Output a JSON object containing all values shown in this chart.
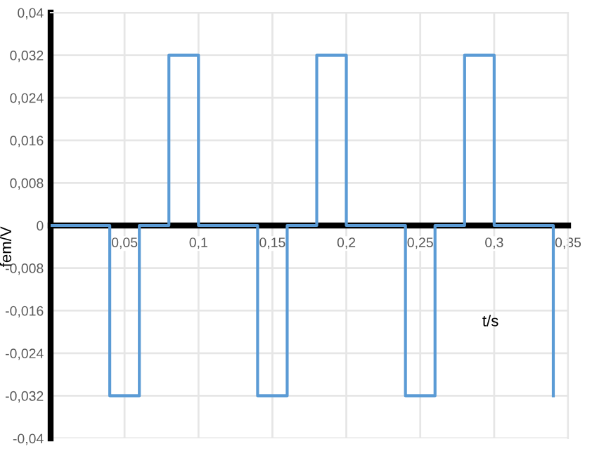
{
  "chart_data": {
    "type": "step",
    "xlabel": "t/s",
    "ylabel": "fem/V",
    "x": [
      0,
      0.04,
      0.06,
      0.08,
      0.1,
      0.14,
      0.16,
      0.18,
      0.2,
      0.24,
      0.26,
      0.28,
      0.3,
      0.34
    ],
    "series": [
      {
        "color": "#5b9bd5",
        "values": [
          0,
          -0.032,
          0,
          0.032,
          0,
          -0.032,
          0,
          0.032,
          0,
          -0.032,
          0,
          0.032,
          0,
          -0.032
        ]
      }
    ],
    "xlim": [
      0,
      0.35
    ],
    "ylim": [
      -0.04,
      0.04
    ],
    "xticks": [
      {
        "value": 0.05,
        "label": "0,05"
      },
      {
        "value": 0.1,
        "label": "0,1"
      },
      {
        "value": 0.15,
        "label": "0,15"
      },
      {
        "value": 0.2,
        "label": "0,2"
      },
      {
        "value": 0.25,
        "label": "0,25"
      },
      {
        "value": 0.3,
        "label": "0,3"
      },
      {
        "value": 0.35,
        "label": "0,35"
      }
    ],
    "yticks": [
      {
        "value": -0.04,
        "label": "-0,04"
      },
      {
        "value": -0.032,
        "label": "-0,032"
      },
      {
        "value": -0.024,
        "label": "-0,024"
      },
      {
        "value": -0.016,
        "label": "-0,016"
      },
      {
        "value": -0.008,
        "label": "-0,008"
      },
      0,
      {
        "value": 0.008,
        "label": "0,008"
      },
      {
        "value": 0.016,
        "label": "0,016"
      },
      {
        "value": 0.024,
        "label": "0,024"
      },
      {
        "value": 0.032,
        "label": "0,032"
      },
      {
        "value": 0.04,
        "label": "0,04"
      }
    ],
    "grid": true,
    "marker": "none",
    "line_style": "solid"
  }
}
